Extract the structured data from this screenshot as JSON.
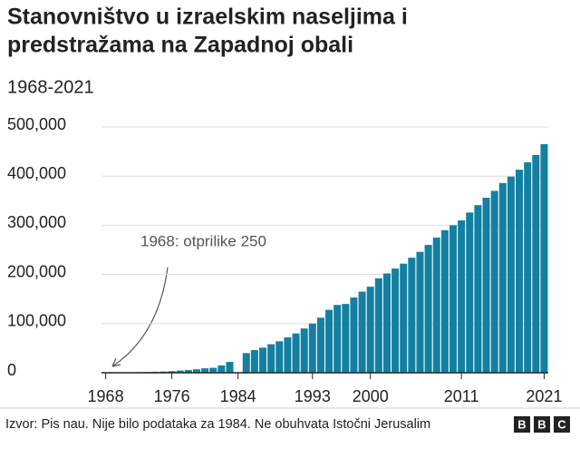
{
  "chart_data": {
    "type": "bar",
    "title": [
      "Stanovništvo u izraelskim naseljima i",
      "predstražama na Zapadnoj obali"
    ],
    "subtitle": "1968-2021",
    "annotation": "1968: otprilike 250",
    "source": "Izvor: Pis nau. Nije bilo podataka za 1984. Ne obuhvata Istočni Jerusalim",
    "logo": [
      "B",
      "B",
      "C"
    ],
    "color": "#1380a1",
    "x": [
      1968,
      1969,
      1970,
      1971,
      1972,
      1973,
      1974,
      1975,
      1976,
      1977,
      1978,
      1979,
      1980,
      1981,
      1982,
      1983,
      1984,
      1985,
      1986,
      1987,
      1988,
      1989,
      1990,
      1991,
      1992,
      1993,
      1994,
      1995,
      1996,
      1997,
      1998,
      1999,
      2000,
      2001,
      2002,
      2003,
      2004,
      2005,
      2006,
      2007,
      2008,
      2009,
      2010,
      2011,
      2012,
      2013,
      2014,
      2015,
      2016,
      2017,
      2018,
      2019,
      2020,
      2021
    ],
    "values": [
      250,
      500,
      700,
      900,
      1200,
      1500,
      2000,
      2500,
      3200,
      4400,
      5500,
      7000,
      9000,
      10000,
      15000,
      22000,
      null,
      40000,
      46000,
      51000,
      58000,
      64000,
      72000,
      80000,
      90000,
      100000,
      112000,
      128000,
      138000,
      140000,
      153000,
      165000,
      175000,
      192000,
      202000,
      212000,
      222000,
      234000,
      246000,
      260000,
      275000,
      290000,
      300000,
      310000,
      326000,
      341000,
      356000,
      370000,
      386000,
      399000,
      413000,
      428000,
      443000,
      465000
    ],
    "xlim": [
      1967.5,
      2021.5
    ],
    "xticks": [
      1968,
      1976,
      1984,
      1993,
      2000,
      2011,
      2021
    ],
    "ylim": [
      0,
      500000
    ],
    "yticks": [
      0,
      {
        "value": 100000,
        "label": "100,000"
      },
      {
        "value": 200000,
        "label": "200,000"
      },
      {
        "value": 300000,
        "label": "300,000"
      },
      {
        "value": 400000,
        "label": "400,000"
      },
      {
        "value": 500000,
        "label": "500,000"
      }
    ],
    "grid": true
  }
}
